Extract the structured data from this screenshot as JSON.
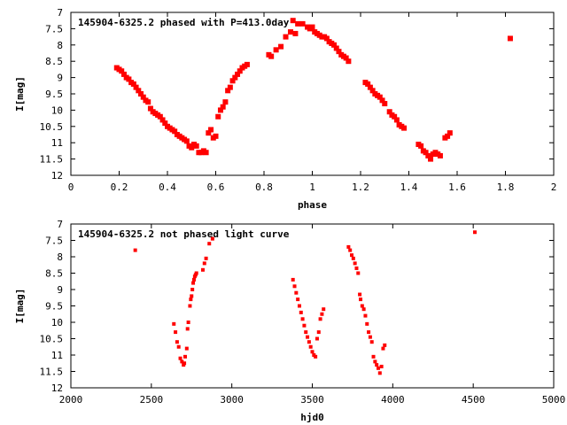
{
  "chart_data": [
    {
      "type": "scatter",
      "title": "145904-6325.2 phased with P=413.0day",
      "xlabel": "phase",
      "ylabel": "I[mag]",
      "xlim": [
        0,
        2
      ],
      "ylim": [
        12,
        7
      ],
      "y_inverted": true,
      "xticks": [
        "0",
        "0.2",
        "0.4",
        "0.6",
        "0.8",
        "1",
        "1.2",
        "1.4",
        "1.6",
        "1.8",
        "2"
      ],
      "yticks": [
        "7",
        "7.5",
        "8",
        "8.5",
        "9",
        "9.5",
        "10",
        "10.5",
        "11",
        "11.5",
        "12"
      ],
      "grid": false,
      "marker_color": "#ff0000",
      "series": [
        {
          "x": [
            0.19,
            0.2,
            0.21,
            0.22,
            0.23,
            0.24,
            0.25,
            0.26,
            0.27,
            0.28,
            0.29,
            0.3,
            0.31,
            0.32,
            0.33,
            0.34,
            0.35,
            0.36,
            0.37,
            0.38,
            0.39,
            0.4,
            0.41,
            0.42,
            0.43,
            0.44,
            0.45,
            0.46,
            0.47,
            0.48,
            0.49,
            0.5,
            0.51,
            0.52,
            0.53,
            0.54,
            0.55,
            0.56,
            0.57,
            0.58,
            0.59,
            0.6,
            0.61,
            0.62,
            0.63,
            0.64,
            0.65,
            0.66,
            0.67,
            0.68,
            0.69,
            0.7,
            0.71,
            0.72,
            0.73,
            0.82,
            0.83,
            0.85,
            0.87,
            0.89,
            0.91,
            0.92,
            0.93,
            0.94,
            0.96,
            0.98,
            0.99,
            1.0,
            1.01,
            1.02,
            1.03,
            1.04,
            1.05,
            1.06,
            1.07,
            1.08,
            1.09,
            1.1,
            1.11,
            1.12,
            1.13,
            1.14,
            1.15,
            1.22,
            1.23,
            1.24,
            1.25,
            1.26,
            1.27,
            1.28,
            1.29,
            1.3,
            1.32,
            1.33,
            1.34,
            1.35,
            1.36,
            1.37,
            1.38,
            1.44,
            1.45,
            1.46,
            1.47,
            1.48,
            1.49,
            1.5,
            1.51,
            1.52,
            1.53,
            1.55,
            1.56,
            1.57,
            1.82
          ],
          "y": [
            8.7,
            8.75,
            8.8,
            8.9,
            9.0,
            9.05,
            9.15,
            9.2,
            9.3,
            9.4,
            9.5,
            9.6,
            9.7,
            9.75,
            9.95,
            10.05,
            10.1,
            10.15,
            10.2,
            10.3,
            10.4,
            10.5,
            10.55,
            10.6,
            10.65,
            10.75,
            10.8,
            10.85,
            10.9,
            10.95,
            11.1,
            11.15,
            11.05,
            11.1,
            11.3,
            11.3,
            11.25,
            11.3,
            10.7,
            10.6,
            10.85,
            10.8,
            10.2,
            10.0,
            9.9,
            9.75,
            9.4,
            9.3,
            9.1,
            9.0,
            8.9,
            8.8,
            8.7,
            8.65,
            8.6,
            8.3,
            8.35,
            8.15,
            8.05,
            7.75,
            7.6,
            7.25,
            7.65,
            7.35,
            7.35,
            7.45,
            7.5,
            7.45,
            7.6,
            7.65,
            7.7,
            7.75,
            7.75,
            7.8,
            7.9,
            7.95,
            8.0,
            8.1,
            8.2,
            8.3,
            8.35,
            8.4,
            8.5,
            9.15,
            9.2,
            9.3,
            9.4,
            9.5,
            9.55,
            9.6,
            9.7,
            9.8,
            10.05,
            10.15,
            10.2,
            10.3,
            10.45,
            10.5,
            10.55,
            11.05,
            11.1,
            11.25,
            11.3,
            11.4,
            11.5,
            11.35,
            11.3,
            11.35,
            11.4,
            10.85,
            10.8,
            10.7,
            7.8
          ]
        }
      ]
    },
    {
      "type": "scatter",
      "title": "145904-6325.2 not phased light curve",
      "xlabel": "hjd0",
      "ylabel": "I[mag]",
      "xlim": [
        2000,
        5000
      ],
      "ylim": [
        12,
        7
      ],
      "y_inverted": true,
      "xticks": [
        "2000",
        "2500",
        "3000",
        "3500",
        "4000",
        "4500",
        "5000"
      ],
      "yticks": [
        "7",
        "7.5",
        "8",
        "8.5",
        "9",
        "9.5",
        "10",
        "10.5",
        "11",
        "11.5",
        "12"
      ],
      "grid": false,
      "marker_color": "#ff0000",
      "series": [
        {
          "x": [
            2400,
            2640,
            2650,
            2660,
            2670,
            2680,
            2690,
            2700,
            2705,
            2710,
            2720,
            2725,
            2730,
            2740,
            2745,
            2750,
            2755,
            2760,
            2765,
            2770,
            2775,
            2780,
            2820,
            2830,
            2840,
            2860,
            2880,
            3380,
            3390,
            3400,
            3410,
            3420,
            3430,
            3440,
            3450,
            3460,
            3470,
            3480,
            3490,
            3500,
            3510,
            3520,
            3530,
            3540,
            3550,
            3560,
            3570,
            3725,
            3735,
            3745,
            3755,
            3765,
            3775,
            3785,
            3795,
            3800,
            3810,
            3820,
            3830,
            3840,
            3850,
            3860,
            3870,
            3880,
            3890,
            3900,
            3910,
            3920,
            3930,
            3940,
            3950,
            4510
          ],
          "y": [
            7.8,
            10.05,
            10.3,
            10.6,
            10.75,
            11.1,
            11.2,
            11.3,
            11.25,
            11.05,
            10.8,
            10.2,
            10.0,
            9.5,
            9.3,
            9.2,
            9.0,
            8.8,
            8.7,
            8.6,
            8.55,
            8.5,
            8.4,
            8.2,
            8.05,
            7.6,
            7.45,
            8.7,
            8.9,
            9.1,
            9.3,
            9.5,
            9.7,
            9.9,
            10.1,
            10.3,
            10.45,
            10.6,
            10.75,
            10.9,
            11.0,
            11.05,
            10.5,
            10.3,
            9.9,
            9.75,
            9.6,
            7.7,
            7.8,
            7.95,
            8.05,
            8.2,
            8.35,
            8.5,
            9.15,
            9.3,
            9.5,
            9.6,
            9.8,
            10.05,
            10.3,
            10.45,
            10.6,
            11.05,
            11.2,
            11.3,
            11.4,
            11.55,
            11.35,
            10.8,
            10.7,
            7.25
          ]
        }
      ]
    }
  ]
}
